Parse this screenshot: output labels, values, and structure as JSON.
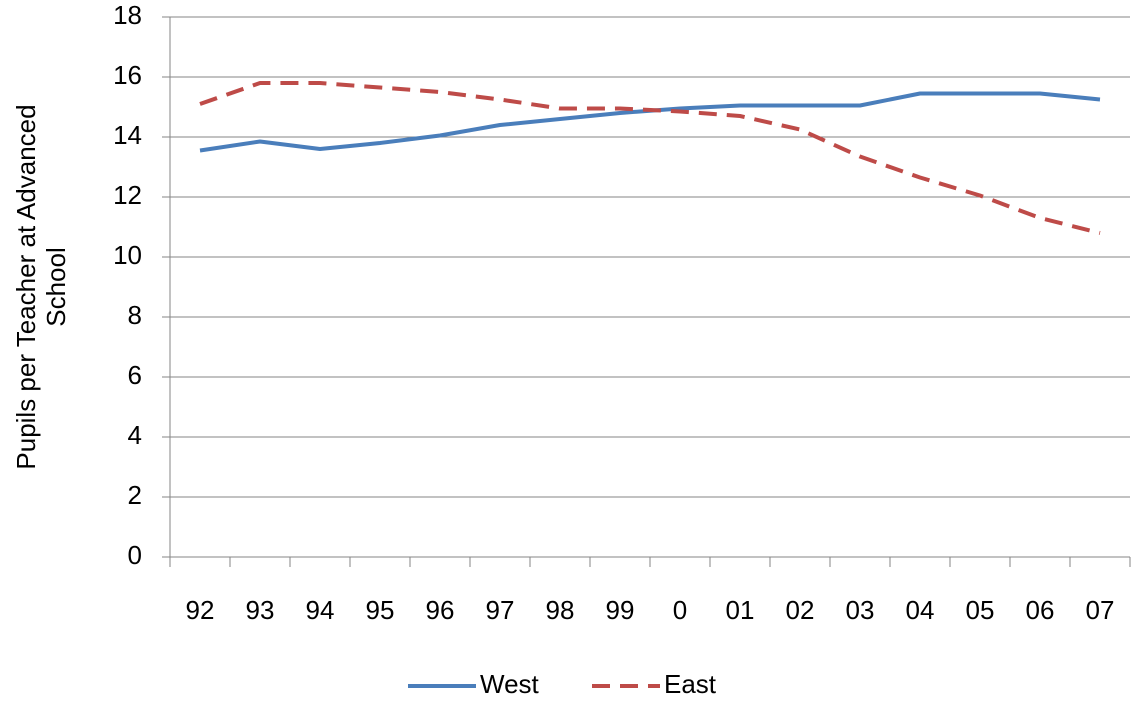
{
  "chart_data": {
    "type": "line",
    "ylabel": [
      "Pupils per Teacher at Advanced",
      "School"
    ],
    "categories": [
      "92",
      "93",
      "94",
      "95",
      "96",
      "97",
      "98",
      "99",
      "0",
      "01",
      "02",
      "03",
      "04",
      "05",
      "06",
      "07"
    ],
    "series": [
      {
        "name": "West",
        "color": "#4a7ebb",
        "dash": false,
        "values": [
          13.55,
          13.85,
          13.6,
          13.8,
          14.05,
          14.4,
          14.6,
          14.8,
          14.95,
          15.05,
          15.05,
          15.05,
          15.45,
          15.45,
          15.45,
          15.25
        ]
      },
      {
        "name": "East",
        "color": "#be4b48",
        "dash": true,
        "values": [
          15.1,
          15.8,
          15.8,
          15.65,
          15.5,
          15.25,
          14.95,
          14.95,
          14.85,
          14.7,
          14.25,
          13.35,
          12.65,
          12.05,
          11.3,
          10.8
        ]
      }
    ],
    "ylim": [
      0,
      18
    ],
    "yticks": [
      0,
      2,
      4,
      6,
      8,
      10,
      12,
      14,
      16,
      18
    ],
    "grid": true,
    "legend": "bottom"
  }
}
